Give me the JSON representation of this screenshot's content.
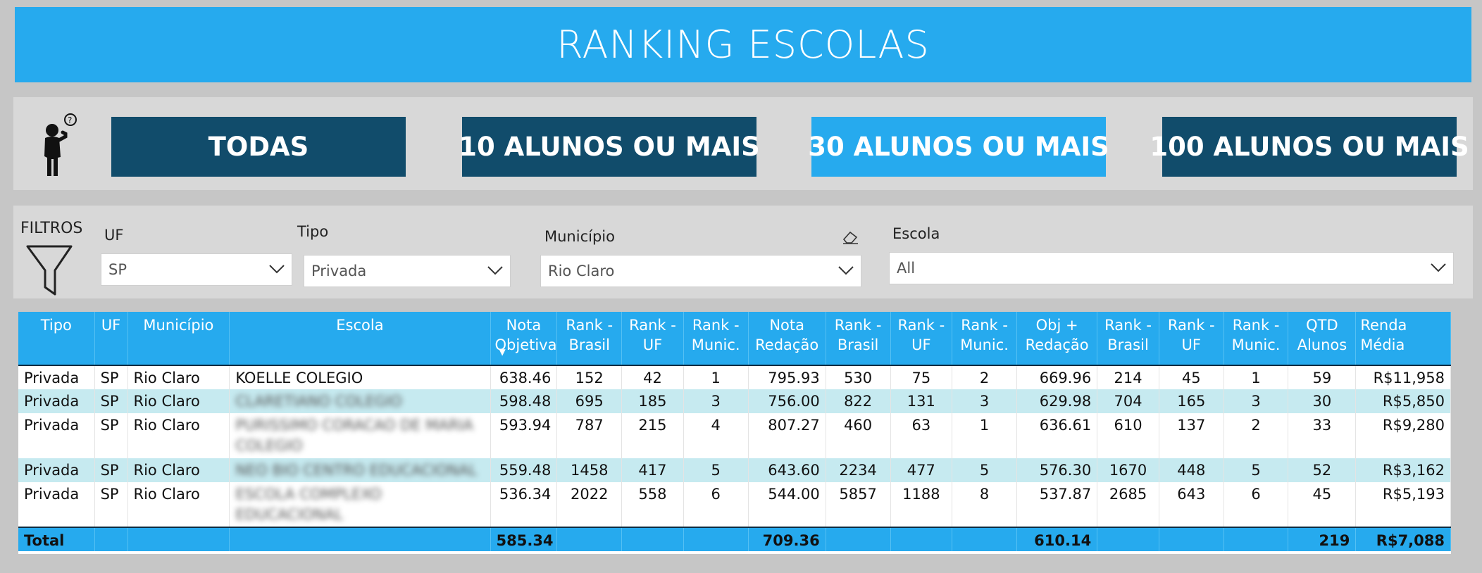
{
  "header": {
    "title": "RANKING ESCOLAS"
  },
  "buttons": [
    {
      "label": "TODAS",
      "style": "dark"
    },
    {
      "label": "10 ALUNOS OU MAIS",
      "style": "dark"
    },
    {
      "label": "30 ALUNOS OU MAIS",
      "style": "light"
    },
    {
      "label": "100 ALUNOS OU MAIS",
      "style": "dark"
    }
  ],
  "filters": {
    "label": "FILTROS",
    "uf": {
      "label": "UF",
      "value": "SP"
    },
    "tipo": {
      "label": "Tipo",
      "value": "Privada"
    },
    "municipio": {
      "label": "Município",
      "value": "Rio Claro"
    },
    "escola": {
      "label": "Escola",
      "value": "All"
    }
  },
  "table": {
    "headers": [
      "Tipo",
      "UF",
      "Município",
      "Escola",
      "Nota Objetiva",
      "Rank - Brasil",
      "Rank - UF",
      "Rank - Munic.",
      "Nota Redação",
      "Rank - Brasil",
      "Rank - UF",
      "Rank - Munic.",
      "Obj + Redação",
      "Rank - Brasil",
      "Rank - UF",
      "Rank - Munic.",
      "QTD Alunos",
      "Renda Média"
    ],
    "rows": [
      {
        "tipo": "Privada",
        "uf": "SP",
        "municipio": "Rio Claro",
        "escola": "KOELLE COLEGIO",
        "blur": false,
        "nota_obj": "638.46",
        "rb1": "152",
        "ru1": "42",
        "rm1": "1",
        "nota_red": "795.93",
        "rb2": "530",
        "ru2": "75",
        "rm2": "2",
        "obj_red": "669.96",
        "rb3": "214",
        "ru3": "45",
        "rm3": "1",
        "qtd": "59",
        "renda": "R$11,958"
      },
      {
        "tipo": "Privada",
        "uf": "SP",
        "municipio": "Rio Claro",
        "escola": "CLARETIANO COLEGIO",
        "blur": true,
        "nota_obj": "598.48",
        "rb1": "695",
        "ru1": "185",
        "rm1": "3",
        "nota_red": "756.00",
        "rb2": "822",
        "ru2": "131",
        "rm2": "3",
        "obj_red": "629.98",
        "rb3": "704",
        "ru3": "165",
        "rm3": "3",
        "qtd": "30",
        "renda": "R$5,850"
      },
      {
        "tipo": "Privada",
        "uf": "SP",
        "municipio": "Rio Claro",
        "escola": "PURISSIMO CORACAO DE MARIA COLEGIO",
        "blur": true,
        "nota_obj": "593.94",
        "rb1": "787",
        "ru1": "215",
        "rm1": "4",
        "nota_red": "807.27",
        "rb2": "460",
        "ru2": "63",
        "rm2": "1",
        "obj_red": "636.61",
        "rb3": "610",
        "ru3": "137",
        "rm3": "2",
        "qtd": "33",
        "renda": "R$9,280"
      },
      {
        "tipo": "Privada",
        "uf": "SP",
        "municipio": "Rio Claro",
        "escola": "NEO BIO CENTRO EDUCACIONAL",
        "blur": true,
        "nota_obj": "559.48",
        "rb1": "1458",
        "ru1": "417",
        "rm1": "5",
        "nota_red": "643.60",
        "rb2": "2234",
        "ru2": "477",
        "rm2": "5",
        "obj_red": "576.30",
        "rb3": "1670",
        "ru3": "448",
        "rm3": "5",
        "qtd": "52",
        "renda": "R$3,162"
      },
      {
        "tipo": "Privada",
        "uf": "SP",
        "municipio": "Rio Claro",
        "escola": "ESCOLA COMPLEXO EDUCACIONAL",
        "blur": true,
        "nota_obj": "536.34",
        "rb1": "2022",
        "ru1": "558",
        "rm1": "6",
        "nota_red": "544.00",
        "rb2": "5857",
        "ru2": "1188",
        "rm2": "8",
        "obj_red": "537.87",
        "rb3": "2685",
        "ru3": "643",
        "rm3": "6",
        "qtd": "45",
        "renda": "R$5,193"
      }
    ],
    "total": {
      "label": "Total",
      "nota_obj": "585.34",
      "nota_red": "709.36",
      "obj_red": "610.14",
      "qtd": "219",
      "renda": "R$7,088"
    }
  },
  "colors": {
    "accent": "#26aaee",
    "dark_button": "#114c6b",
    "row_alt": "#c6eaf0"
  }
}
